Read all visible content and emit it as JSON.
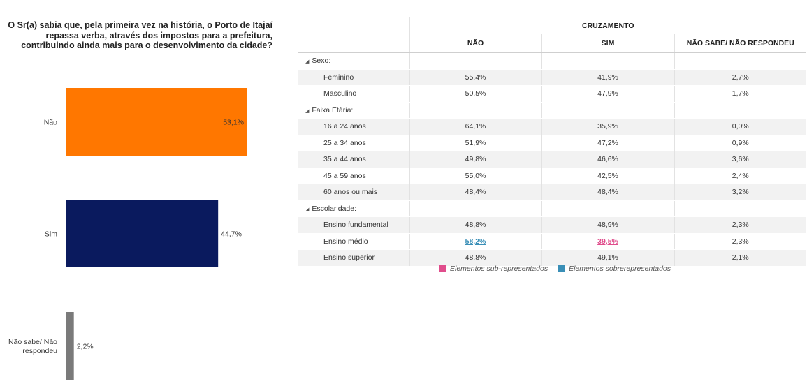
{
  "question": "O Sr(a) sabia que, pela primeira vez na história, o Porto de Itajaí repassa verba, através dos impostos para a prefeitura, contribuindo ainda mais para o desenvolvimento da cidade?",
  "chart_data": {
    "type": "bar",
    "orientation": "horizontal",
    "categories": [
      "Não",
      "Sim",
      "Não sabe/ Não respondeu"
    ],
    "values": [
      53.1,
      44.7,
      2.2
    ],
    "value_labels": [
      "53,1%",
      "44,7%",
      "2,2%"
    ],
    "colors": [
      "#ff7700",
      "#0a1a5e",
      "#7a7a7a"
    ],
    "xlim": [
      0,
      53.1
    ]
  },
  "table": {
    "title": "CRUZAMENTO",
    "columns": [
      "NÃO",
      "SIM",
      "NÃO SABE/ NÃO RESPONDEU"
    ],
    "groups": [
      {
        "label": "Sexo:",
        "rows": [
          {
            "label": "Feminino",
            "values": [
              "55,4%",
              "41,9%",
              "2,7%"
            ]
          },
          {
            "label": "Masculino",
            "values": [
              "50,5%",
              "47,9%",
              "1,7%"
            ]
          }
        ]
      },
      {
        "label": "Faixa Etária:",
        "rows": [
          {
            "label": "16 a 24 anos",
            "values": [
              "64,1%",
              "35,9%",
              "0,0%"
            ]
          },
          {
            "label": "25 a 34 anos",
            "values": [
              "51,9%",
              "47,2%",
              "0,9%"
            ]
          },
          {
            "label": "35 a 44 anos",
            "values": [
              "49,8%",
              "46,6%",
              "3,6%"
            ]
          },
          {
            "label": "45 a 59 anos",
            "values": [
              "55,0%",
              "42,5%",
              "2,4%"
            ]
          },
          {
            "label": "60 anos ou mais",
            "values": [
              "48,4%",
              "48,4%",
              "3,2%"
            ]
          }
        ]
      },
      {
        "label": "Escolaridade:",
        "rows": [
          {
            "label": "Ensino fundamental",
            "values": [
              "48,8%",
              "48,9%",
              "2,3%"
            ]
          },
          {
            "label": "Ensino médio",
            "values": [
              "58,2%",
              "39,5%",
              "2,3%"
            ],
            "highlight": [
              "over",
              "under",
              null
            ]
          },
          {
            "label": "Ensino superior",
            "values": [
              "48,8%",
              "49,1%",
              "2,1%"
            ]
          }
        ]
      }
    ]
  },
  "legend": [
    {
      "label": "Elementos sub-representados",
      "color": "#e04d8c"
    },
    {
      "label": "Elementos sobrerepresentados",
      "color": "#3a8fb7"
    }
  ]
}
